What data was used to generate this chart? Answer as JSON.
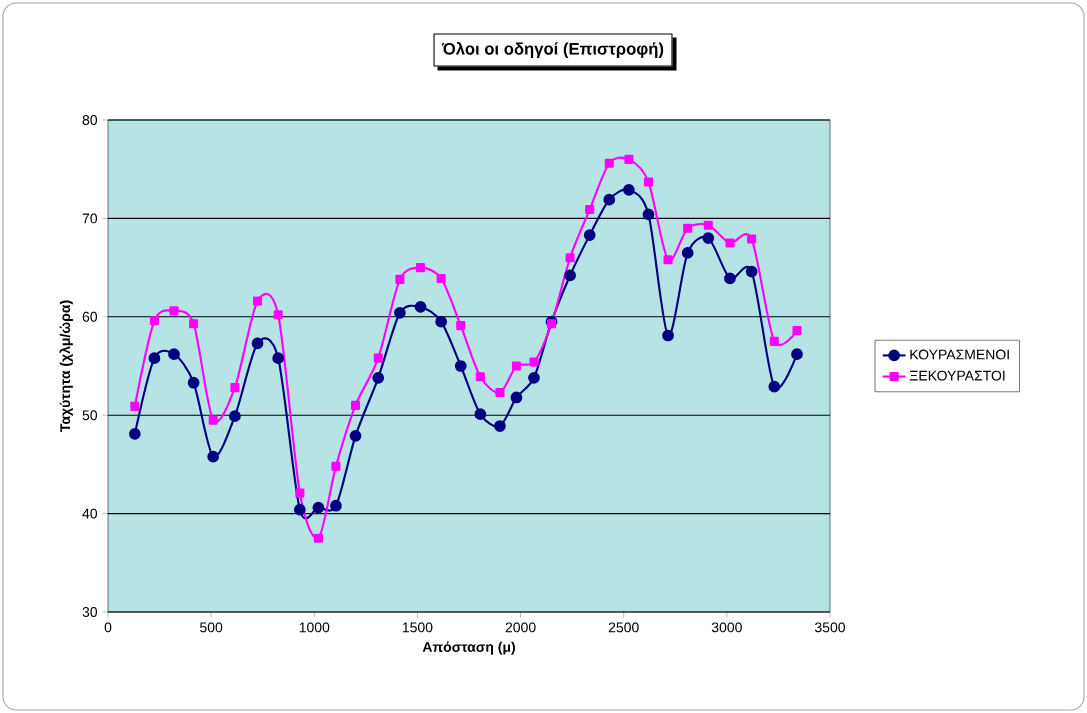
{
  "chart_data": {
    "type": "line",
    "title": "Όλοι οι οδηγοί (Επιστροφή)",
    "xlabel": "Απόσταση (μ)",
    "ylabel": "Ταχύτητα (χλμ/ώρα)",
    "x": [
      130,
      225,
      320,
      415,
      510,
      615,
      725,
      825,
      930,
      1020,
      1105,
      1200,
      1310,
      1415,
      1515,
      1615,
      1710,
      1805,
      1900,
      1980,
      2065,
      2150,
      2240,
      2335,
      2430,
      2525,
      2620,
      2715,
      2810,
      2910,
      3015,
      3120,
      3230,
      3340
    ],
    "series": [
      {
        "name": "ΚΟΥΡΑΣΜΕΝΟΙ",
        "color": "#000080",
        "marker": "circle",
        "values": [
          48.1,
          55.8,
          56.2,
          53.3,
          45.8,
          49.9,
          57.3,
          55.8,
          40.4,
          40.6,
          40.8,
          47.9,
          53.8,
          60.4,
          61.0,
          59.5,
          55.0,
          50.1,
          48.9,
          51.8,
          53.8,
          59.5,
          64.2,
          68.3,
          71.9,
          72.9,
          70.4,
          58.1,
          66.5,
          68.0,
          63.9,
          64.6,
          52.9,
          56.2
        ]
      },
      {
        "name": "ΞΕΚΟΥΡΑΣΤΟΙ",
        "color": "#ff00ff",
        "marker": "square",
        "values": [
          50.9,
          59.6,
          60.6,
          59.3,
          49.5,
          52.8,
          61.6,
          60.2,
          42.1,
          37.5,
          44.8,
          51.0,
          55.8,
          63.8,
          65.0,
          63.9,
          59.1,
          53.9,
          52.3,
          55.0,
          55.4,
          59.3,
          66.0,
          70.9,
          75.6,
          76.0,
          73.7,
          65.8,
          69.0,
          69.3,
          67.5,
          67.9,
          57.5,
          58.6
        ]
      }
    ],
    "xlim": [
      0,
      3500
    ],
    "xticks": [
      0,
      500,
      1000,
      1500,
      2000,
      2500,
      3000,
      3500
    ],
    "ylim": [
      30,
      80
    ],
    "yticks": [
      30,
      40,
      50,
      60,
      70,
      80
    ],
    "grid": "y",
    "legend": "right",
    "line_style": "solid"
  }
}
